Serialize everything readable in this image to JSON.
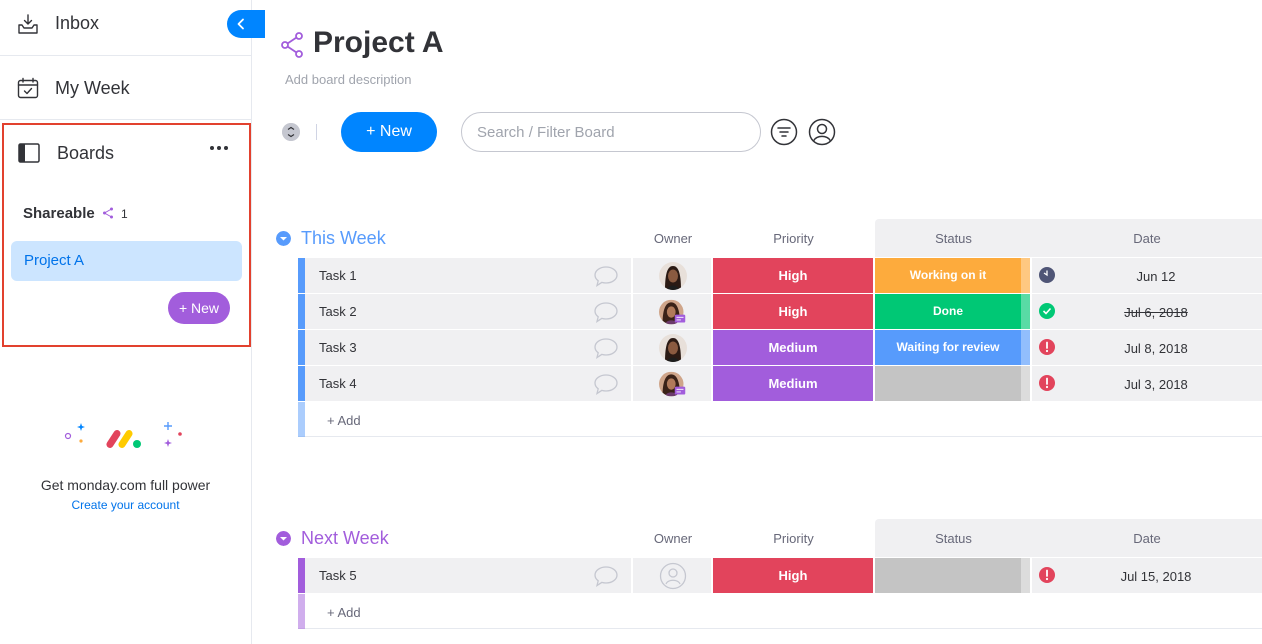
{
  "sidebar": {
    "inbox": "Inbox",
    "my_week": "My Week",
    "boards": "Boards",
    "section": "Shareable",
    "section_count": "1",
    "board_item": "Project A",
    "new_label": "+ New",
    "promo_text": "Get monday.com full power",
    "promo_link": "Create your account"
  },
  "header": {
    "title": "Project A",
    "description": "Add board description",
    "new_label": "+ New",
    "search_placeholder": "Search / Filter Board"
  },
  "columns": {
    "owner": "Owner",
    "priority": "Priority",
    "status": "Status",
    "date": "Date"
  },
  "colors": {
    "accent": "#0085ff",
    "this_week": "#579bfc",
    "next_week": "#a25ddc",
    "high": "#e2445c",
    "medium": "#a25ddc",
    "working": "#fdab3d",
    "done": "#00c875",
    "review": "#579bfc",
    "empty": "#c4c4c4"
  },
  "groups": [
    {
      "title": "This Week",
      "rows": [
        {
          "name": "Task 1",
          "priority": "High",
          "status": "Working on it",
          "date": "Jun 12",
          "date_state": "clock",
          "owner": "avatar-woman"
        },
        {
          "name": "Task 2",
          "priority": "High",
          "status": "Done",
          "date": "Jul 6, 2018",
          "date_state": "done",
          "owner": "avatar-woman-badge"
        },
        {
          "name": "Task 3",
          "priority": "Medium",
          "status": "Waiting for review",
          "date": "Jul 8, 2018",
          "date_state": "overdue",
          "owner": "avatar-woman"
        },
        {
          "name": "Task 4",
          "priority": "Medium",
          "status": "",
          "date": "Jul 3, 2018",
          "date_state": "overdue",
          "owner": "avatar-woman-badge"
        }
      ],
      "add_label": "+ Add"
    },
    {
      "title": "Next Week",
      "rows": [
        {
          "name": "Task 5",
          "priority": "High",
          "status": "",
          "date": "Jul 15, 2018",
          "date_state": "overdue",
          "owner": "empty-avatar-icon"
        }
      ],
      "add_label": "+ Add"
    }
  ]
}
